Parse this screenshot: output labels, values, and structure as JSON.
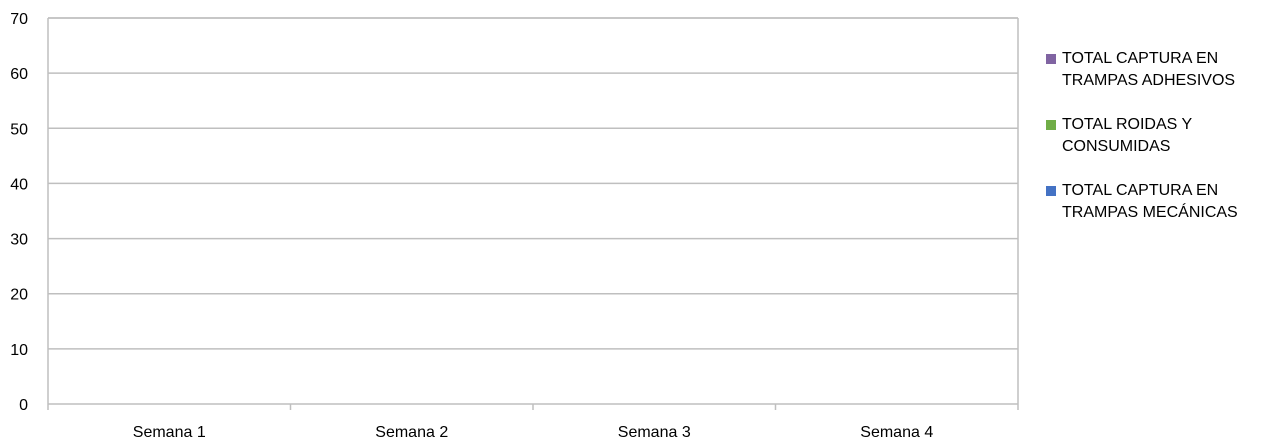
{
  "chart_data": {
    "type": "bar",
    "title": "",
    "xlabel": "",
    "ylabel": "",
    "categories": [
      "Semana 1",
      "Semana 2",
      "Semana 3",
      "Semana 4"
    ],
    "ylim": [
      0,
      70
    ],
    "yticks": [
      "0",
      "10",
      "20",
      "30",
      "40",
      "50",
      "60",
      "70"
    ],
    "grid": true,
    "legend_position": "right",
    "series": [
      {
        "name": "TOTAL CAPTURA EN\nTRAMPAS  MECÁNICAS",
        "color": "#4472c4",
        "values": [
          0,
          0,
          0,
          0
        ]
      },
      {
        "name": "TOTAL ROIDAS Y\nCONSUMIDAS",
        "color": "#70ad47",
        "values": [
          0,
          0,
          0,
          0
        ]
      },
      {
        "name": "TOTAL CAPTURA EN\nTRAMPAS  ADHESIVOS",
        "color": "#8064a2",
        "values": [
          0,
          0,
          0,
          0
        ]
      }
    ],
    "legend_order": [
      2,
      1,
      0
    ]
  }
}
